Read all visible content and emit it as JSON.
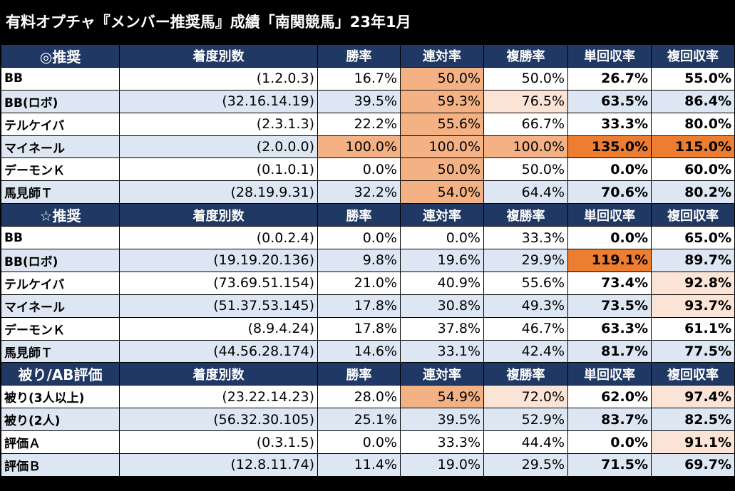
{
  "title": "有料オプチャ『メンバー推奨馬』成績「南関競馬」23年1月",
  "columns": [
    "着度別数",
    "勝率",
    "連対率",
    "複勝率",
    "単回収率",
    "複回収率"
  ],
  "sections": [
    {
      "label": "◎推奨",
      "rows": [
        {
          "name": "BB",
          "record": "(1.2.0.3)",
          "win": "16.7%",
          "rentai": "50.0%",
          "fukusho": "50.0%",
          "tan_ret": "26.7%",
          "fuku_ret": "55.0%"
        },
        {
          "name": "BB(ロボ)",
          "record": "(32.16.14.19)",
          "win": "39.5%",
          "rentai": "59.3%",
          "fukusho": "76.5%",
          "tan_ret": "63.5%",
          "fuku_ret": "86.4%"
        },
        {
          "name": "テルケイバ",
          "record": "(2.3.1.3)",
          "win": "22.2%",
          "rentai": "55.6%",
          "fukusho": "66.7%",
          "tan_ret": "33.3%",
          "fuku_ret": "80.0%"
        },
        {
          "name": "マイネール",
          "record": "(2.0.0.0)",
          "win": "100.0%",
          "rentai": "100.0%",
          "fukusho": "100.0%",
          "tan_ret": "135.0%",
          "fuku_ret": "115.0%"
        },
        {
          "name": "デーモンＫ",
          "record": "(0.1.0.1)",
          "win": "0.0%",
          "rentai": "50.0%",
          "fukusho": "50.0%",
          "tan_ret": "0.0%",
          "fuku_ret": "60.0%"
        },
        {
          "name": "馬見師Ｔ",
          "record": "(28.19.9.31)",
          "win": "32.2%",
          "rentai": "54.0%",
          "fukusho": "64.4%",
          "tan_ret": "70.6%",
          "fuku_ret": "80.2%"
        }
      ]
    },
    {
      "label": "☆推奨",
      "rows": [
        {
          "name": "BB",
          "record": "(0.0.2.4)",
          "win": "0.0%",
          "rentai": "0.0%",
          "fukusho": "33.3%",
          "tan_ret": "0.0%",
          "fuku_ret": "65.0%"
        },
        {
          "name": "BB(ロボ)",
          "record": "(19.19.20.136)",
          "win": "9.8%",
          "rentai": "19.6%",
          "fukusho": "29.9%",
          "tan_ret": "119.1%",
          "fuku_ret": "89.7%"
        },
        {
          "name": "テルケイバ",
          "record": "(73.69.51.154)",
          "win": "21.0%",
          "rentai": "40.9%",
          "fukusho": "55.6%",
          "tan_ret": "73.4%",
          "fuku_ret": "92.8%"
        },
        {
          "name": "マイネール",
          "record": "(51.37.53.145)",
          "win": "17.8%",
          "rentai": "30.8%",
          "fukusho": "49.3%",
          "tan_ret": "73.5%",
          "fuku_ret": "93.7%"
        },
        {
          "name": "デーモンＫ",
          "record": "(8.9.4.24)",
          "win": "17.8%",
          "rentai": "37.8%",
          "fukusho": "46.7%",
          "tan_ret": "63.3%",
          "fuku_ret": "61.1%"
        },
        {
          "name": "馬見師Ｔ",
          "record": "(44.56.28.174)",
          "win": "14.6%",
          "rentai": "33.1%",
          "fukusho": "42.4%",
          "tan_ret": "81.7%",
          "fuku_ret": "77.5%"
        }
      ]
    },
    {
      "label": "被り/AB評価",
      "rows": [
        {
          "name": "被り(3人以上)",
          "record": "(23.22.14.23)",
          "win": "28.0%",
          "rentai": "54.9%",
          "fukusho": "72.0%",
          "tan_ret": "62.0%",
          "fuku_ret": "97.4%"
        },
        {
          "name": "被り(2人)",
          "record": "(56.32.30.105)",
          "win": "25.1%",
          "rentai": "39.5%",
          "fukusho": "52.9%",
          "tan_ret": "83.7%",
          "fuku_ret": "82.5%"
        },
        {
          "name": "評価Ａ",
          "record": "(0.3.1.5)",
          "win": "0.0%",
          "rentai": "33.3%",
          "fukusho": "44.4%",
          "tan_ret": "0.0%",
          "fuku_ret": "91.1%"
        },
        {
          "name": "評価Ｂ",
          "record": "(12.8.11.74)",
          "win": "11.4%",
          "rentai": "19.0%",
          "fukusho": "29.5%",
          "tan_ret": "71.5%",
          "fuku_ret": "69.7%"
        }
      ]
    }
  ],
  "highlight_colors": {
    "medium": "#f4b183",
    "light": "#fbe3d5",
    "strong": "#ed7d31"
  }
}
